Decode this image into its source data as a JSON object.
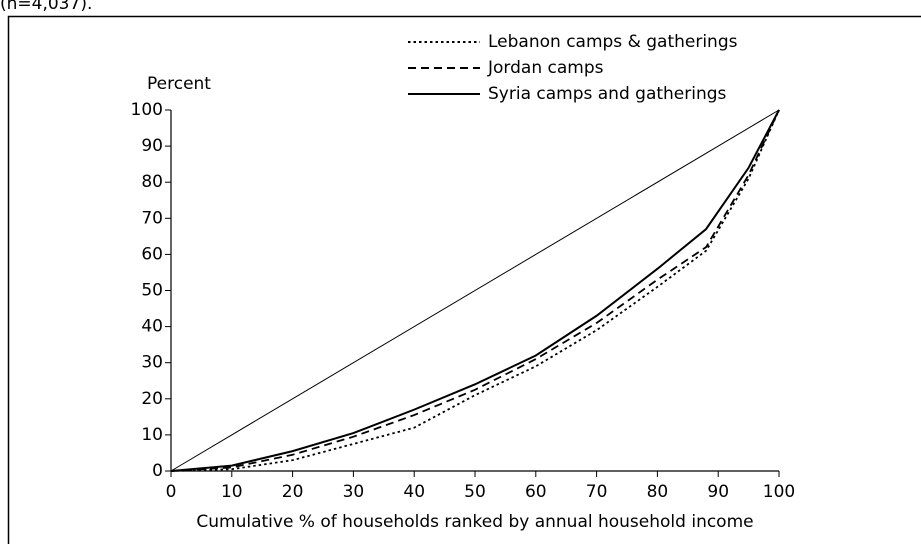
{
  "chart_data": {
    "type": "line",
    "subtitle": "(n=4,037).",
    "ylabel": "Percent",
    "xlabel": "Cumulative % of households ranked by annual household income",
    "x": [
      0,
      10,
      20,
      30,
      40,
      50,
      60,
      70,
      80,
      88,
      95,
      100
    ],
    "series": [
      {
        "name": "Lebanon camps & gatherings",
        "color": "#000000",
        "dash": "dotted",
        "values": [
          0,
          0.5,
          3,
          7.5,
          12,
          21,
          29,
          39,
          51,
          61,
          81,
          100
        ]
      },
      {
        "name": "Jordan camps",
        "color": "#000000",
        "dash": "dashed",
        "values": [
          0,
          1,
          4.5,
          9.5,
          15.5,
          22.5,
          31,
          41,
          53,
          62,
          82,
          100
        ]
      },
      {
        "name": "Syria camps and gatherings",
        "color": "#000000",
        "dash": "solid",
        "values": [
          0,
          1.5,
          5.5,
          10.5,
          17,
          24,
          32,
          43,
          56,
          67,
          84,
          100
        ]
      }
    ],
    "equality_line": {
      "x": [
        0,
        100
      ],
      "values": [
        0,
        100
      ]
    },
    "xlim": [
      0,
      100
    ],
    "xticks": [
      0,
      10,
      20,
      30,
      40,
      50,
      60,
      70,
      80,
      90,
      100
    ],
    "ylim": [
      0,
      100
    ],
    "yticks": [
      0,
      10,
      20,
      30,
      40,
      50,
      60,
      70,
      80,
      90,
      100
    ]
  }
}
